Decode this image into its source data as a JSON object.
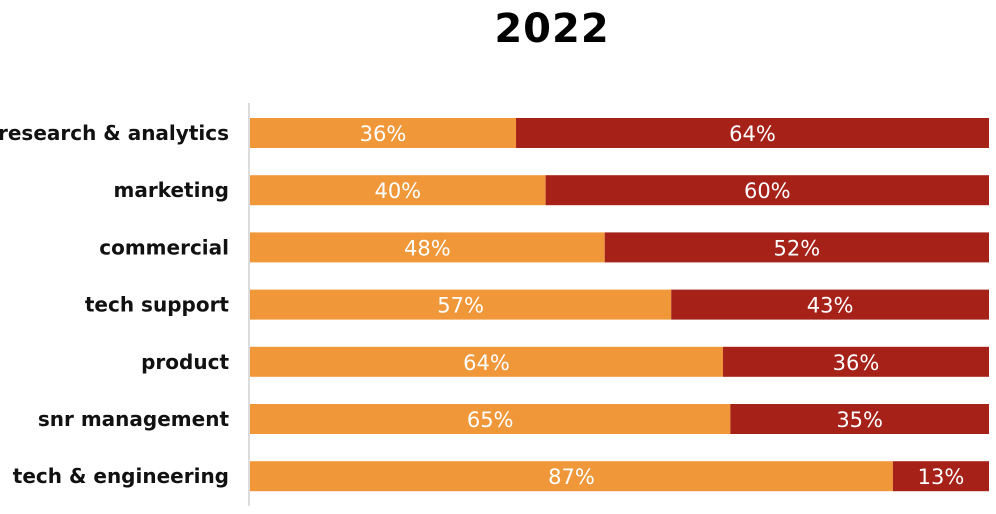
{
  "chart_data": {
    "type": "bar",
    "orientation": "horizontal",
    "stacked": true,
    "normalized": true,
    "title": "2022",
    "categories": [
      "research & analytics",
      "marketing",
      "commercial",
      "tech support",
      "product",
      "snr management",
      "tech & engineering"
    ],
    "series": [
      {
        "color": "#F0973A",
        "values": [
          36,
          40,
          48,
          57,
          64,
          65,
          87
        ],
        "labels": [
          "36%",
          "40%",
          "48%",
          "57%",
          "64%",
          "65%",
          "87%"
        ]
      },
      {
        "color": "#A62118",
        "values": [
          64,
          60,
          52,
          43,
          36,
          35,
          13
        ],
        "labels": [
          "64%",
          "60%",
          "52%",
          "43%",
          "36%",
          "35%",
          "13%"
        ]
      }
    ],
    "xlim": [
      0,
      100
    ],
    "grid": false,
    "legend": "none"
  }
}
